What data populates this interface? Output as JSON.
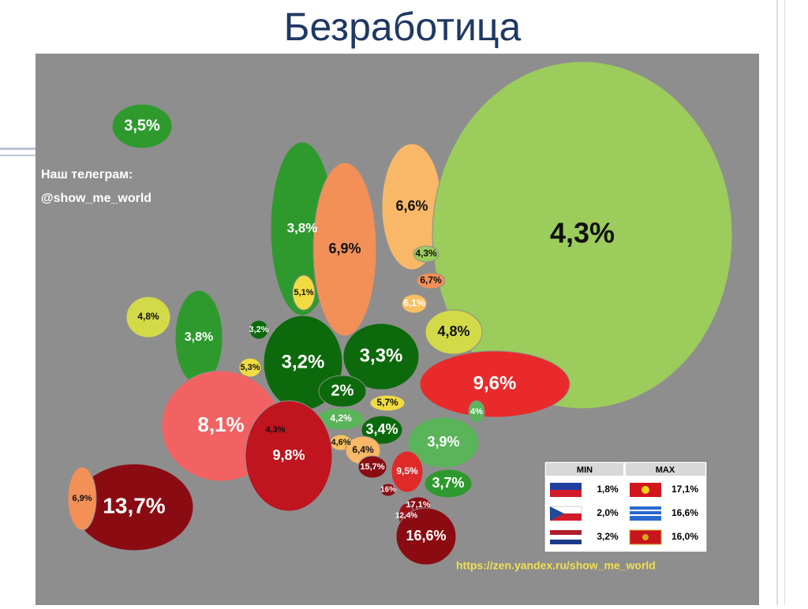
{
  "header": {
    "title": "Безработица"
  },
  "telegram": {
    "line1": "Наш телеграм:",
    "line2": "@show_me_world"
  },
  "url": "https://zen.yandex.ru/show_me_world",
  "regions": [
    {
      "label": "3,5%",
      "color": "#2e9a2e"
    },
    {
      "label": "3,8%",
      "color": "#2e9a2e"
    },
    {
      "label": "6,9%",
      "color": "#f29058"
    },
    {
      "label": "6,6%",
      "color": "#f8b868"
    },
    {
      "label": "4,3%",
      "color": "#9ccc5c"
    },
    {
      "label": "4,3%",
      "color": "#9ccc5c"
    },
    {
      "label": "6,7%",
      "color": "#f29058"
    },
    {
      "label": "6,1%",
      "color": "#f8c060"
    },
    {
      "label": "4,8%",
      "color": "#d2da48"
    },
    {
      "label": "4,8%",
      "color": "#d2da48"
    },
    {
      "label": "3,8%",
      "color": "#2e9a2e"
    },
    {
      "label": "5,1%",
      "color": "#f0dc40"
    },
    {
      "label": "3,2%",
      "color": "#0c6a0c"
    },
    {
      "label": "5,3%",
      "color": "#f0dc40"
    },
    {
      "label": "3,2%",
      "color": "#0c6a0c"
    },
    {
      "label": "3,3%",
      "color": "#0c6a0c"
    },
    {
      "label": "2%",
      "color": "#0c6a0c"
    },
    {
      "label": "9,6%",
      "color": "#e82a2a"
    },
    {
      "label": "8,1%",
      "color": "#f26262"
    },
    {
      "label": "4,3%",
      "color": "#9ccc5c"
    },
    {
      "label": "4,2%",
      "color": "#5ab45a"
    },
    {
      "label": "5,7%",
      "color": "#f0dc40"
    },
    {
      "label": "3,4%",
      "color": "#0c6a0c"
    },
    {
      "label": "4%",
      "color": "#5ab45a"
    },
    {
      "label": "3,9%",
      "color": "#5ab45a"
    },
    {
      "label": "4,6%",
      "color": "#f8c060"
    },
    {
      "label": "6,4%",
      "color": "#f8b868"
    },
    {
      "label": "9,8%",
      "color": "#c0141e"
    },
    {
      "label": "15,7%",
      "color": "#8a0c12"
    },
    {
      "label": "9,5%",
      "color": "#e02a2a"
    },
    {
      "label": "3,7%",
      "color": "#2e9a2e"
    },
    {
      "label": "16%",
      "color": "#8a0c12"
    },
    {
      "label": "17,1%",
      "color": "#8a0c12"
    },
    {
      "label": "12,4%",
      "color": "#a01018"
    },
    {
      "label": "16,6%",
      "color": "#8a0c12"
    },
    {
      "label": "13,7%",
      "color": "#8a0c12"
    },
    {
      "label": "6,9%",
      "color": "#f29058"
    }
  ],
  "legend": {
    "headers": [
      "MIN",
      "MAX"
    ],
    "rows": [
      [
        "1,8%",
        "17,1%"
      ],
      [
        "2,0%",
        "16,6%"
      ],
      [
        "3,2%",
        "16,0%"
      ]
    ]
  }
}
